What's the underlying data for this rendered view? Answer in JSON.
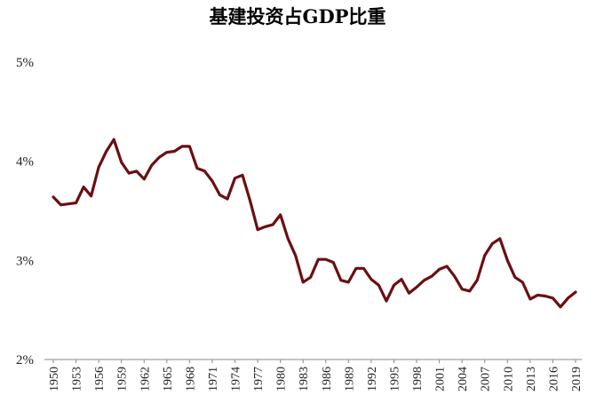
{
  "chart_data": {
    "type": "line",
    "title": "基建投资占GDP比重",
    "xlabel": "",
    "ylabel": "",
    "ylim": [
      2,
      5
    ],
    "yticks": [
      "2%",
      "3%",
      "4%",
      "5%"
    ],
    "ytick_values": [
      2,
      3,
      4,
      5
    ],
    "xtick_labels": [
      "1950",
      "1953",
      "1956",
      "1959",
      "1962",
      "1965",
      "1968",
      "1971",
      "1974",
      "1977",
      "1980",
      "1983",
      "1986",
      "1989",
      "1992",
      "1995",
      "1998",
      "2001",
      "2004",
      "2007",
      "2010",
      "2013",
      "2016",
      "2019"
    ],
    "grid": false,
    "line_color": "#6b0f12",
    "series": [
      {
        "x": [
          1950,
          1951,
          1952,
          1953,
          1954,
          1955,
          1956,
          1957,
          1958,
          1959,
          1960,
          1961,
          1962,
          1963,
          1964,
          1965,
          1966,
          1967,
          1968,
          1969,
          1970,
          1971,
          1972,
          1973,
          1974,
          1975,
          1976,
          1977,
          1978,
          1979,
          1980,
          1981,
          1982,
          1983,
          1984,
          1985,
          1986,
          1987,
          1988,
          1989,
          1990,
          1991,
          1992,
          1993,
          1994,
          1995,
          1996,
          1997,
          1998,
          1999,
          2000,
          2001,
          2002,
          2003,
          2004,
          2005,
          2006,
          2007,
          2008,
          2009,
          2010,
          2011,
          2012,
          2013,
          2014,
          2015,
          2016,
          2017,
          2018,
          2019
        ],
        "values": [
          3.64,
          3.56,
          3.57,
          3.58,
          3.74,
          3.65,
          3.94,
          4.1,
          4.22,
          3.99,
          3.88,
          3.9,
          3.82,
          3.96,
          4.04,
          4.09,
          4.1,
          4.15,
          4.15,
          3.93,
          3.9,
          3.8,
          3.66,
          3.62,
          3.83,
          3.86,
          3.6,
          3.31,
          3.34,
          3.36,
          3.46,
          3.22,
          3.05,
          2.78,
          2.83,
          3.01,
          3.01,
          2.98,
          2.8,
          2.78,
          2.92,
          2.92,
          2.81,
          2.75,
          2.59,
          2.75,
          2.81,
          2.67,
          2.73,
          2.8,
          2.84,
          2.91,
          2.94,
          2.84,
          2.71,
          2.69,
          2.8,
          3.05,
          3.17,
          3.22,
          3.0,
          2.83,
          2.78,
          2.61,
          2.65,
          2.64,
          2.62,
          2.53,
          2.62,
          2.68
        ]
      }
    ]
  }
}
